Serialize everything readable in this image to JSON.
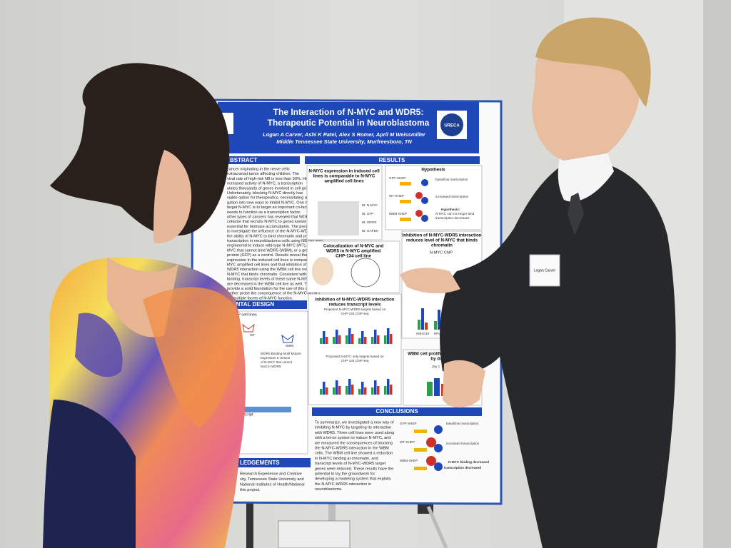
{
  "poster": {
    "title": [
      "The Interaction of N-MYC and WDR5:",
      "Therapeutic Potential in Neuroblastoma"
    ],
    "authors": "Logan A Carver, Ashi K Patel, Alex S Romer, April M Weissmiller",
    "affiliation": "Middle Tennessee State University, Murfreesboro, TN",
    "logo": "URECA",
    "abstract": {
      "heading": "BSTRACT",
      "lines": [
        "cancer originating in the nerve cells",
        "extracranial tumor affecting children. The",
        "vival rate of high-risk NB is less than 50%. High-risk NB is",
        "ncreased activity of N-MYC, a transcription",
        "ulates thousands of genes involved in cell growth",
        "Unfortunately, blocking N-MYC directly has",
        "viable option for therapeutics, necessitating a",
        "gation into new ways to inhibit N-MYC. One novel",
        "target N-MYC is to target an important co-factor",
        "needs to function as a transcription factor.",
        "other types of cancers has revealed that WDR5 is a",
        "cofactor that recruits N-MYC to genes known to be",
        "essential for biomass accumulation. The present study sought",
        "to investigate the influence of the N-MYC-WDR5 interaction on",
        "the ability of N-MYC to bind chromatin and promote",
        "transcription in neuroblastoma cells using NB cell lines",
        "engineered to induce wild-type N-MYC (WT), a version of N-",
        "MYC that cannot bind WDR5 (WBM), or a green fluorescent",
        "protein (GFP) as a control. Results reveal that N-MYC",
        "expression in the induced cell lines is comparable to other N-",
        "MYC amplified cell lines and that inhibition of the N-MYC-",
        "WDR5 interaction using the WBM cell line reduces the level of",
        "N-MYC that binds chromatin. Consistent with a decrease in N-",
        "binding, transcript levels of these same N-MYC-WDR5",
        "are decreased in the WBM cell line as well. These",
        "provide a solid foundation for the use of this model",
        "further probe the consequence of the N-MYC-WDR5",
        "on multiple facets of N-MYC function."
      ]
    },
    "results": {
      "heading": "RESULTS",
      "panel1": [
        "N-MYC expression in induced cell",
        "lines is comparable to N-MYC",
        "amplified cell lines"
      ],
      "blots": [
        "IB: N-MYC",
        "IB: GFP",
        "IB: WDR5",
        "IB: GAPDH"
      ],
      "hypothesis": "Hypothesis",
      "cells": [
        "GFP-SHEP",
        "WT-SHEP",
        "WBM-SHEP"
      ],
      "hyp_notes": [
        "basal/low transcription",
        "increased transcription",
        "Hypothesis:",
        "N-MYC can no longer bind",
        "transcription decreases"
      ],
      "panel2": [
        "Colocalization of N-MYC and",
        "WDR5 in N-MYC amplified",
        "CHP-134 cell line"
      ],
      "panel3": [
        "Inhibition of N-MYC-WDR5 interaction",
        "reduces level of N-MYC that binds",
        "chromatin"
      ],
      "chip": "N-MYC ChIP",
      "chip_genes": [
        "SNHG15",
        "RPL35",
        "CCT7",
        "BOLD"
      ],
      "panel4": [
        "Inhibition of N-MYC-WDR5 interaction",
        "reduces transcript levels"
      ],
      "panel4a": [
        "Proposed N-MYC-WDR5 targets based on",
        "CHP-134 ChIP seq"
      ],
      "panel4b": [
        "Proposed N-MYC only targets based on",
        "CHP-134 ChIP seq"
      ],
      "panel5": [
        "WBM cell proliferation decreased",
        "by day four"
      ],
      "day": "day 1"
    },
    "design": {
      "heading": "PERIMENTAL DESIGN",
      "lines": [
        "red SHEP cell lines",
        "nduction",
        "cycline on",
        "TRE",
        "ding",
        "mRNA (transcript",
        "analysis)"
      ],
      "wbm": [
        "WDR5 Binding Motif Mutant",
        "Expresses a version",
        "of N-MYC that cannot",
        "bind to WDR5"
      ],
      "wt": "WT",
      "wbm_label": "WBM"
    },
    "conclusions": {
      "heading": "CONCLUSIONS",
      "lines": [
        "To summarize, we investigated a new way of",
        "inhibiting N-MYC by targeting its interaction",
        "with WDR5. Three cell lines were used along",
        "with a tet-on system to induce N-MYC, and",
        "we measured the consequences of blocking",
        "the N-MYC-WDR5 interaction in the WBM",
        "cells. The WBM cell line showed a reduction",
        "in N-MYC binding at chromatin, and",
        "transcript levels of N-MYC-WDR5 target",
        "genes were reduced. These results have the",
        "potential to lay the groundwork for",
        "developing a modeling system that exploits",
        "the N-MYC-WDR5 interaction in",
        "neuroblastoma."
      ],
      "notes": [
        "basal/low transcription",
        "increased transcription",
        "N-MYC binding decreased",
        "transcription decreased"
      ]
    },
    "acknowledgements": {
      "heading": "LEDGEMENTS",
      "lines": [
        "Research Experience and Creative",
        "sity, Tennessee State University and",
        "National Institutes of Health/National",
        "this project."
      ]
    }
  },
  "badge": "Logan Carver"
}
